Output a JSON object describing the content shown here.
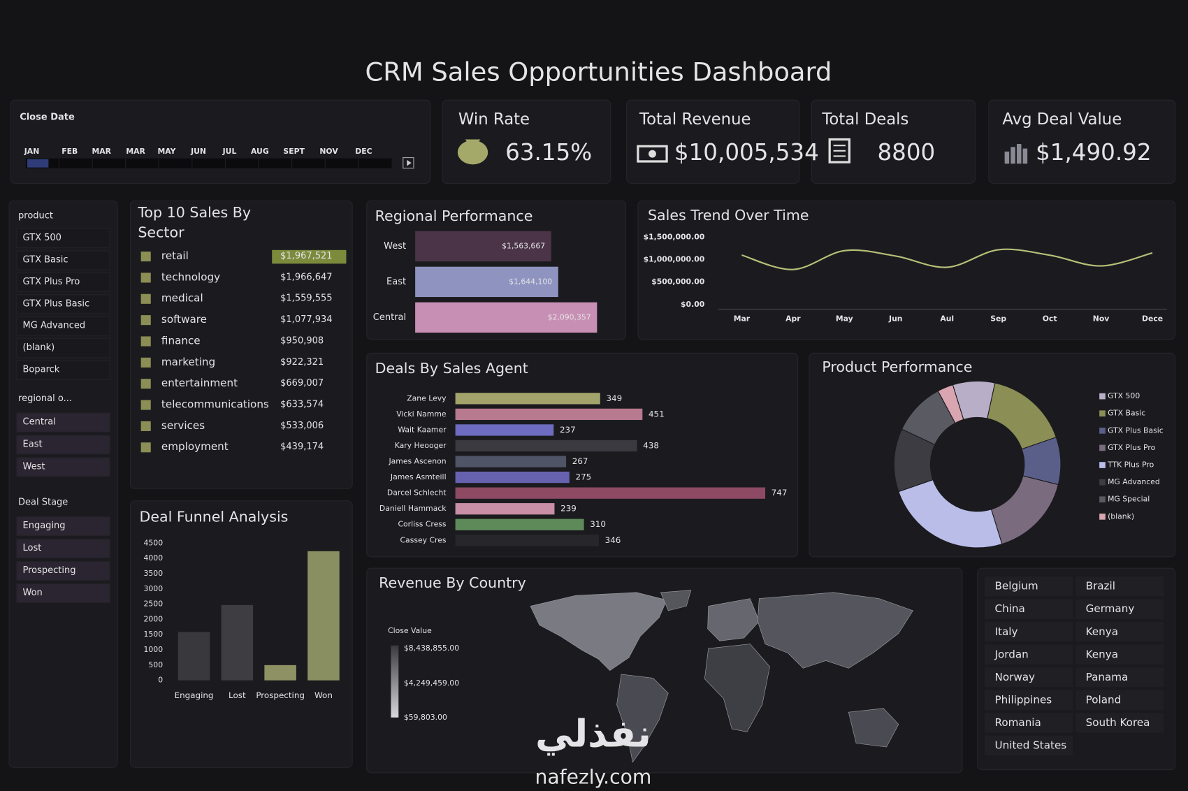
{
  "header": {
    "title": "CRM Sales Opportunities Dashboard"
  },
  "close_date": {
    "label": "Close Date",
    "months": [
      "JAN",
      "FEB",
      "MAR",
      "MAR",
      "MAY",
      "JUN",
      "JUL",
      "AUG",
      "SEPT",
      "NOV",
      "DEC"
    ]
  },
  "kpis": [
    {
      "label": "Win Rate",
      "value": "63.15%"
    },
    {
      "label": "Total Revenue",
      "value": "$10,005,534"
    },
    {
      "label": "Total Deals",
      "value": "8800"
    },
    {
      "label": "Avg Deal Value",
      "value": "$1,490.92"
    }
  ],
  "slicers": [
    {
      "title": "product",
      "items": [
        "GTX 500",
        "GTX Basic",
        "GTX Plus Pro",
        "GTX Plus Basic",
        "MG Advanced",
        "(blank)",
        "Boparck"
      ]
    },
    {
      "title": "regional o...",
      "items": [
        "Central",
        "East",
        "West"
      ]
    },
    {
      "title": "Deal Stage",
      "items": [
        "Engaging",
        "Lost",
        "Prospecting",
        "Won"
      ]
    }
  ],
  "top_sectors": {
    "title": "Top 10 Sales By Sector",
    "rows": [
      [
        "retail",
        "$1,967,521"
      ],
      [
        "technology",
        "$1,966,647"
      ],
      [
        "medical",
        "$1,559,555"
      ],
      [
        "software",
        "$1,077,934"
      ],
      [
        "finance",
        "$950,908"
      ],
      [
        "marketing",
        "$922,321"
      ],
      [
        "entertainment",
        "$669,007"
      ],
      [
        "telecommunications",
        "$633,574"
      ],
      [
        "services",
        "$533,006"
      ],
      [
        "employment",
        "$439,174"
      ]
    ]
  },
  "chart_data": [
    {
      "type": "bar",
      "orientation": "horizontal",
      "title": "Regional Performance",
      "categories": [
        "West",
        "East",
        "Central"
      ],
      "values": [
        1563667,
        1644100,
        2090357
      ],
      "value_labels": [
        "$1,563,667",
        "$1,644,100",
        "$2,090,357"
      ],
      "colors": [
        "#4b3448",
        "#8e93c0",
        "#c88fb4"
      ]
    },
    {
      "type": "line",
      "title": "Sales Trend Over Time",
      "categories": [
        "Mar",
        "Apr",
        "May",
        "Jun",
        "Aul",
        "Sep",
        "Oct",
        "Nov",
        "Dece"
      ],
      "values": [
        1100000,
        780000,
        1200000,
        1080000,
        830000,
        1220000,
        1100000,
        860000,
        1150000
      ],
      "color": "#b8bf78",
      "ylim": [
        0,
        1500000
      ],
      "yticks": [
        {
          "value": 0,
          "label": "$0.00"
        },
        {
          "value": 500000,
          "label": "$500,000.00"
        },
        {
          "value": 1000000,
          "label": "$1,000,000.00"
        },
        {
          "value": 1500000,
          "label": "$1,500,000.00"
        }
      ]
    },
    {
      "type": "bar",
      "orientation": "horizontal",
      "title": "Deals By Sales Agent",
      "categories": [
        "Zane Levy",
        "Vicki Namme",
        "Wait Kaamer",
        "Kary Heooger",
        "James Ascenon",
        "James Asmteill",
        "Darcel Schlecht",
        "Daniell Hammack",
        "Corliss Cress",
        "Cassey Cres"
      ],
      "values": [
        349,
        451,
        237,
        438,
        267,
        275,
        747,
        239,
        310,
        346
      ],
      "colors": [
        "#a3a46b",
        "#b87a8e",
        "#6e6cc0",
        "#3a3a40",
        "#4f5466",
        "#6762b0",
        "#8e4a63",
        "#c88fa6",
        "#5e8a5a",
        "#26262b"
      ]
    },
    {
      "type": "pie",
      "title": "Product Performance",
      "categories": [
        "GTX 500",
        "GTX Basic",
        "GTX Plus Basic",
        "GTX Plus Pro",
        "TTK Plus Pro",
        "MG Advanced",
        "MG Special",
        "(blank)"
      ],
      "values": [
        8,
        16,
        9,
        16,
        24,
        12,
        10,
        3
      ],
      "colors": [
        "#b8aec8",
        "#8c8f55",
        "#5a5f8a",
        "#7b6b7e",
        "#b9bde8",
        "#3c3c42",
        "#5a5a62",
        "#d8a5b0"
      ],
      "legend": "right"
    },
    {
      "type": "bar",
      "title": "Deal Funnel Analysis",
      "categories": [
        "Engaging",
        "Lost",
        "Prospecting",
        "Won"
      ],
      "values": [
        1589,
        2473,
        500,
        4238
      ],
      "colors": [
        "#38383d",
        "#3d3d42",
        "#8e9164",
        "#8a8f62"
      ],
      "ylim": [
        0,
        4500
      ],
      "yticks": [
        0,
        500,
        1000,
        1500,
        2000,
        2500,
        3000,
        3500,
        4000,
        4500
      ]
    }
  ],
  "map": {
    "title": "Revenue By Country",
    "legend_title": "Close Value",
    "legend_labels": [
      "$8,438,855.00",
      "$4,249,459.00",
      "$59,803.00"
    ]
  },
  "countries": {
    "rows": [
      [
        "Belgium",
        "Brazil"
      ],
      [
        "China",
        "Germany"
      ],
      [
        "Italy",
        "Kenya"
      ],
      [
        "Jordan",
        "Kenya"
      ],
      [
        "Norway",
        "Panama"
      ],
      [
        "Philippines",
        "Poland"
      ],
      [
        "Romania",
        "South Korea"
      ],
      [
        "United States"
      ]
    ]
  },
  "watermark": {
    "logo": "نفذلي",
    "site": "nafezly.com"
  }
}
